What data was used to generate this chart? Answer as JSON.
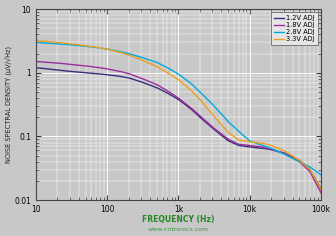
{
  "title": "",
  "xlabel": "FREQUENCY (Hz)",
  "ylabel": "NOISE SPECTRAL DENSITY (μV/√Hz)",
  "xlim": [
    10,
    100000
  ],
  "ylim": [
    0.01,
    10
  ],
  "legend_labels": [
    "1.2V ADJ",
    "1.8V ADJ",
    "2.8V ADJ",
    "3.3V ADJ"
  ],
  "line_colors": [
    "#3a2d7e",
    "#9b2d9b",
    "#00aadd",
    "#e8a020"
  ],
  "background_color": "#c8c8c8",
  "grid_major_color": "#ffffff",
  "grid_minor_color": "#b0b0b0",
  "watermark": "www.cntronics.com",
  "curves": {
    "f12": {
      "freq": [
        10,
        20,
        30,
        50,
        70,
        100,
        150,
        200,
        300,
        500,
        700,
        1000,
        1500,
        2000,
        3000,
        5000,
        7000,
        10000,
        15000,
        20000,
        30000,
        50000,
        70000,
        100000
      ],
      "val": [
        1.2,
        1.1,
        1.05,
        1.0,
        0.97,
        0.93,
        0.88,
        0.83,
        0.72,
        0.58,
        0.48,
        0.38,
        0.27,
        0.2,
        0.135,
        0.085,
        0.072,
        0.068,
        0.065,
        0.062,
        0.055,
        0.042,
        0.03,
        0.015
      ]
    },
    "f18": {
      "freq": [
        10,
        20,
        30,
        50,
        70,
        100,
        150,
        200,
        300,
        500,
        700,
        1000,
        1500,
        2000,
        3000,
        5000,
        7000,
        10000,
        15000,
        20000,
        30000,
        50000,
        70000,
        100000
      ],
      "val": [
        1.5,
        1.42,
        1.35,
        1.28,
        1.22,
        1.15,
        1.05,
        0.97,
        0.82,
        0.65,
        0.52,
        0.4,
        0.28,
        0.21,
        0.14,
        0.09,
        0.075,
        0.072,
        0.068,
        0.062,
        0.055,
        0.04,
        0.028,
        0.013
      ]
    },
    "f28": {
      "freq": [
        10,
        20,
        30,
        50,
        70,
        100,
        150,
        200,
        300,
        500,
        700,
        1000,
        1500,
        2000,
        3000,
        5000,
        7000,
        10000,
        15000,
        20000,
        30000,
        50000,
        70000,
        100000
      ],
      "val": [
        3.0,
        2.85,
        2.75,
        2.6,
        2.5,
        2.35,
        2.15,
        2.0,
        1.75,
        1.45,
        1.2,
        0.95,
        0.68,
        0.5,
        0.32,
        0.17,
        0.12,
        0.085,
        0.072,
        0.065,
        0.053,
        0.04,
        0.033,
        0.025
      ]
    },
    "f33": {
      "freq": [
        10,
        20,
        30,
        50,
        70,
        100,
        150,
        200,
        300,
        500,
        700,
        1000,
        1500,
        2000,
        3000,
        5000,
        7000,
        10000,
        15000,
        20000,
        30000,
        50000,
        70000,
        100000
      ],
      "val": [
        3.2,
        3.0,
        2.85,
        2.65,
        2.52,
        2.35,
        2.1,
        1.9,
        1.6,
        1.25,
        1.0,
        0.78,
        0.53,
        0.38,
        0.22,
        0.115,
        0.088,
        0.082,
        0.078,
        0.072,
        0.06,
        0.042,
        0.03,
        0.015
      ]
    }
  }
}
